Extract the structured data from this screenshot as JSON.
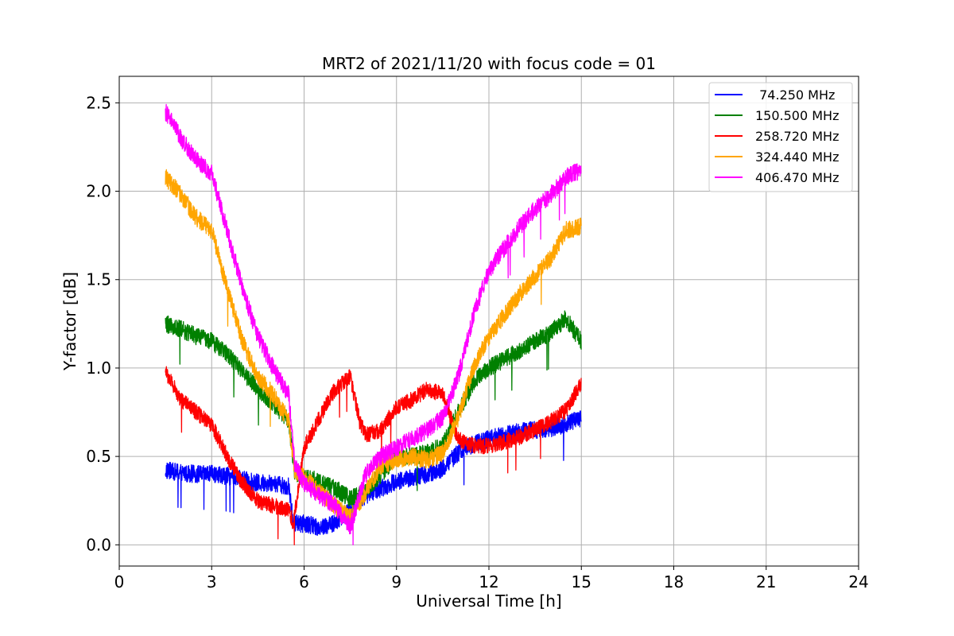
{
  "chart_data": {
    "type": "line",
    "title": "MRT2 of 2021/11/20 with focus code = 01",
    "xlabel": "Universal Time [h]",
    "ylabel": "Y-factor [dB]",
    "xlim": [
      0,
      24
    ],
    "ylim": [
      -0.12,
      2.65
    ],
    "xticks": [
      0,
      3,
      6,
      9,
      12,
      15,
      18,
      21,
      24
    ],
    "yticks": [
      0.0,
      0.5,
      1.0,
      1.5,
      2.0,
      2.5
    ],
    "ytick_labels": [
      "0.0",
      "0.5",
      "1.0",
      "1.5",
      "2.0",
      "2.5"
    ],
    "grid": true,
    "legend_position": "top-right",
    "colors": {
      "blue": "#0000ff",
      "green": "#008000",
      "red": "#ff0000",
      "orange": "#ffa500",
      "magenta": "#ff00ff",
      "grid": "#b0b0b0"
    },
    "series": [
      {
        "name": " 74.250 MHz",
        "color": "#0000ff",
        "noise": 0.05,
        "x": [
          1.5,
          2.0,
          2.5,
          3.0,
          3.5,
          4.0,
          4.5,
          5.0,
          5.5,
          5.65,
          6.0,
          6.5,
          7.0,
          7.5,
          8.0,
          8.5,
          9.0,
          9.5,
          10.0,
          10.5,
          11.0,
          11.5,
          12.0,
          12.5,
          13.0,
          13.5,
          14.0,
          14.5,
          15.0
        ],
        "y": [
          0.42,
          0.41,
          0.4,
          0.4,
          0.39,
          0.37,
          0.35,
          0.35,
          0.33,
          0.12,
          0.12,
          0.1,
          0.12,
          0.2,
          0.28,
          0.32,
          0.36,
          0.38,
          0.4,
          0.43,
          0.52,
          0.57,
          0.6,
          0.62,
          0.64,
          0.65,
          0.66,
          0.68,
          0.72
        ]
      },
      {
        "name": "150.500 MHz",
        "color": "#008000",
        "noise": 0.05,
        "x": [
          1.5,
          2.0,
          2.5,
          3.0,
          3.5,
          4.0,
          4.5,
          5.0,
          5.5,
          5.7,
          6.0,
          6.5,
          7.0,
          7.5,
          8.0,
          8.5,
          9.0,
          9.5,
          10.0,
          10.5,
          11.0,
          11.5,
          12.0,
          12.5,
          13.0,
          13.5,
          14.0,
          14.5,
          15.0
        ],
        "y": [
          1.25,
          1.22,
          1.18,
          1.15,
          1.08,
          0.98,
          0.88,
          0.8,
          0.7,
          0.4,
          0.38,
          0.36,
          0.32,
          0.26,
          0.3,
          0.4,
          0.5,
          0.5,
          0.52,
          0.56,
          0.75,
          0.92,
          1.0,
          1.05,
          1.1,
          1.15,
          1.2,
          1.28,
          1.15
        ]
      },
      {
        "name": "258.720 MHz",
        "color": "#ff0000",
        "noise": 0.045,
        "x": [
          1.5,
          2.0,
          2.5,
          3.0,
          3.5,
          4.0,
          4.5,
          5.0,
          5.5,
          5.65,
          6.0,
          6.5,
          7.0,
          7.5,
          7.8,
          8.0,
          8.5,
          9.0,
          9.5,
          10.0,
          10.5,
          11.0,
          11.5,
          12.0,
          12.5,
          13.0,
          13.5,
          14.0,
          14.5,
          15.0
        ],
        "y": [
          0.98,
          0.82,
          0.75,
          0.68,
          0.5,
          0.35,
          0.25,
          0.22,
          0.2,
          0.12,
          0.55,
          0.72,
          0.88,
          0.95,
          0.7,
          0.62,
          0.65,
          0.78,
          0.82,
          0.88,
          0.85,
          0.6,
          0.56,
          0.56,
          0.58,
          0.61,
          0.65,
          0.7,
          0.76,
          0.92
        ]
      },
      {
        "name": "324.440 MHz",
        "color": "#ffa500",
        "noise": 0.05,
        "x": [
          1.5,
          2.0,
          2.5,
          3.0,
          3.5,
          4.0,
          4.5,
          5.0,
          5.5,
          5.7,
          6.0,
          6.5,
          7.0,
          7.5,
          8.0,
          8.5,
          9.0,
          9.5,
          10.0,
          10.5,
          11.0,
          11.5,
          12.0,
          12.5,
          13.0,
          13.5,
          14.0,
          14.5,
          15.0
        ],
        "y": [
          2.08,
          1.98,
          1.85,
          1.78,
          1.45,
          1.15,
          0.95,
          0.85,
          0.7,
          0.42,
          0.38,
          0.3,
          0.22,
          0.15,
          0.3,
          0.45,
          0.48,
          0.5,
          0.48,
          0.52,
          0.72,
          1.0,
          1.18,
          1.3,
          1.42,
          1.52,
          1.62,
          1.78,
          1.8
        ]
      },
      {
        "name": "406.470 MHz",
        "color": "#ff00ff",
        "noise": 0.05,
        "x": [
          1.5,
          2.0,
          2.5,
          3.0,
          3.5,
          4.0,
          4.5,
          5.0,
          5.5,
          5.7,
          6.0,
          6.5,
          7.0,
          7.5,
          8.0,
          8.5,
          9.0,
          9.5,
          10.0,
          10.5,
          11.0,
          11.5,
          12.0,
          12.5,
          13.0,
          13.5,
          14.0,
          14.5,
          15.0
        ],
        "y": [
          2.45,
          2.3,
          2.18,
          2.1,
          1.78,
          1.45,
          1.18,
          1.0,
          0.85,
          0.45,
          0.35,
          0.28,
          0.22,
          0.1,
          0.4,
          0.5,
          0.55,
          0.6,
          0.65,
          0.72,
          0.95,
          1.3,
          1.55,
          1.68,
          1.8,
          1.9,
          1.98,
          2.08,
          2.12
        ]
      }
    ]
  }
}
